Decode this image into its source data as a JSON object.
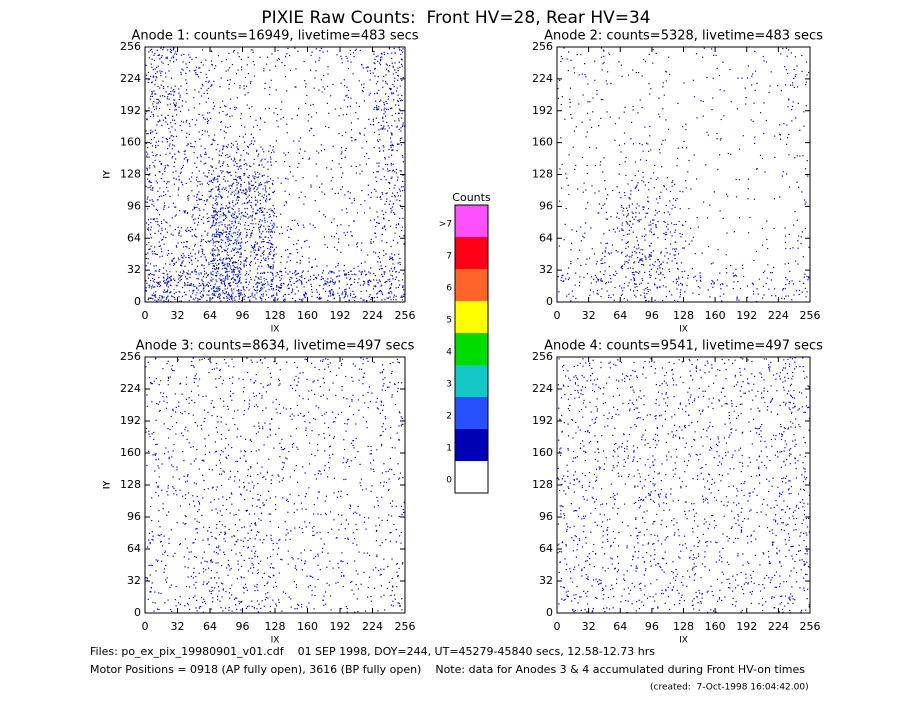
{
  "title": "PIXIE Raw Counts:  Front HV=28, Rear HV=34",
  "chart_data": [
    {
      "type": "density",
      "title": "Anode 1: counts=16949, livetime=483 secs",
      "xlabel": "IX",
      "ylabel": "IY",
      "xlim": [
        0,
        256
      ],
      "ylim": [
        0,
        256
      ],
      "xticks": [
        0,
        32,
        64,
        96,
        128,
        160,
        192,
        224,
        256
      ],
      "yticks": [
        0,
        32,
        64,
        96,
        128,
        160,
        192,
        224,
        256
      ],
      "z": [
        [
          800,
          700,
          1200,
          700,
          600,
          500,
          500,
          500
        ],
        [
          300,
          400,
          1100,
          600,
          150,
          100,
          100,
          250
        ],
        [
          300,
          350,
          1000,
          700,
          100,
          80,
          100,
          250
        ],
        [
          300,
          300,
          700,
          600,
          100,
          80,
          100,
          300
        ],
        [
          350,
          250,
          400,
          300,
          80,
          80,
          120,
          300
        ],
        [
          350,
          200,
          150,
          100,
          80,
          80,
          120,
          350
        ],
        [
          400,
          200,
          150,
          100,
          80,
          80,
          150,
          400
        ],
        [
          400,
          200,
          150,
          100,
          100,
          100,
          150,
          400
        ]
      ]
    },
    {
      "type": "density",
      "title": "Anode 2: counts=5328, livetime=483 secs",
      "xlabel": "IX",
      "ylabel": "IY",
      "xlim": [
        0,
        256
      ],
      "ylim": [
        0,
        256
      ],
      "xticks": [
        0,
        32,
        64,
        96,
        128,
        160,
        192,
        224,
        256
      ],
      "yticks": [
        0,
        32,
        64,
        96,
        128,
        160,
        192,
        224,
        256
      ],
      "z": [
        [
          150,
          250,
          350,
          250,
          150,
          150,
          150,
          200
        ],
        [
          80,
          150,
          400,
          250,
          60,
          40,
          40,
          80
        ],
        [
          60,
          100,
          350,
          250,
          40,
          30,
          30,
          60
        ],
        [
          60,
          80,
          200,
          150,
          40,
          30,
          30,
          60
        ],
        [
          60,
          60,
          100,
          60,
          30,
          30,
          40,
          60
        ],
        [
          60,
          60,
          50,
          40,
          40,
          40,
          40,
          80
        ],
        [
          80,
          60,
          50,
          40,
          40,
          40,
          50,
          100
        ],
        [
          100,
          80,
          60,
          40,
          40,
          40,
          60,
          120
        ]
      ]
    },
    {
      "type": "density",
      "title": "Anode 3: counts=8634, livetime=497 secs",
      "xlabel": "IX",
      "ylabel": "IY",
      "xlim": [
        0,
        256
      ],
      "ylim": [
        0,
        256
      ],
      "xticks": [
        0,
        32,
        64,
        96,
        128,
        160,
        192,
        224,
        256
      ],
      "yticks": [
        0,
        32,
        64,
        96,
        128,
        160,
        192,
        224,
        256
      ],
      "z": [
        [
          150,
          200,
          250,
          220,
          130,
          120,
          120,
          150
        ],
        [
          140,
          150,
          220,
          200,
          120,
          110,
          110,
          130
        ],
        [
          140,
          140,
          200,
          200,
          110,
          100,
          100,
          120
        ],
        [
          130,
          130,
          170,
          180,
          110,
          100,
          100,
          120
        ],
        [
          130,
          120,
          140,
          150,
          110,
          110,
          110,
          120
        ],
        [
          130,
          120,
          130,
          150,
          120,
          110,
          110,
          120
        ],
        [
          130,
          120,
          120,
          140,
          120,
          120,
          120,
          130
        ],
        [
          150,
          130,
          130,
          150,
          130,
          130,
          130,
          150
        ]
      ]
    },
    {
      "type": "density",
      "title": "Anode 4: counts=9541, livetime=497 secs",
      "xlabel": "IX",
      "ylabel": "IY",
      "xlim": [
        0,
        256
      ],
      "ylim": [
        0,
        256
      ],
      "xticks": [
        0,
        32,
        64,
        96,
        128,
        160,
        192,
        224,
        256
      ],
      "yticks": [
        0,
        32,
        64,
        96,
        128,
        160,
        192,
        224,
        256
      ],
      "z": [
        [
          200,
          170,
          160,
          170,
          160,
          150,
          150,
          220
        ],
        [
          180,
          150,
          150,
          160,
          150,
          140,
          140,
          210
        ],
        [
          170,
          150,
          150,
          150,
          150,
          140,
          140,
          210
        ],
        [
          170,
          150,
          150,
          150,
          150,
          140,
          140,
          210
        ],
        [
          170,
          150,
          150,
          150,
          150,
          140,
          140,
          210
        ],
        [
          170,
          150,
          150,
          150,
          150,
          140,
          140,
          210
        ],
        [
          170,
          150,
          150,
          150,
          150,
          150,
          150,
          210
        ],
        [
          180,
          160,
          150,
          150,
          150,
          150,
          150,
          220
        ]
      ]
    }
  ],
  "colorbar": {
    "title": "Counts",
    "labels": [
      0,
      1,
      2,
      3,
      4,
      5,
      6,
      7,
      ">7"
    ],
    "colors": [
      "#ffffff",
      "#0000b4",
      "#2850ff",
      "#14c8c8",
      "#00dc00",
      "#ffff00",
      "#ff6428",
      "#ff0014",
      "#ff50ff"
    ]
  },
  "footer": {
    "files": "Files: po_ex_pix_19980901_v01.cdf    01 SEP 1998, DOY=244, UT=45279-45840 secs, 12.58-12.73 hrs",
    "motor": "Motor Positions = 0918 (AP fully open), 3616 (BP fully open)    Note: data for Anodes 3 & 4 accumulated during Front HV-on times",
    "created": "(created:  7-Oct-1998 16:04:42.00)"
  }
}
